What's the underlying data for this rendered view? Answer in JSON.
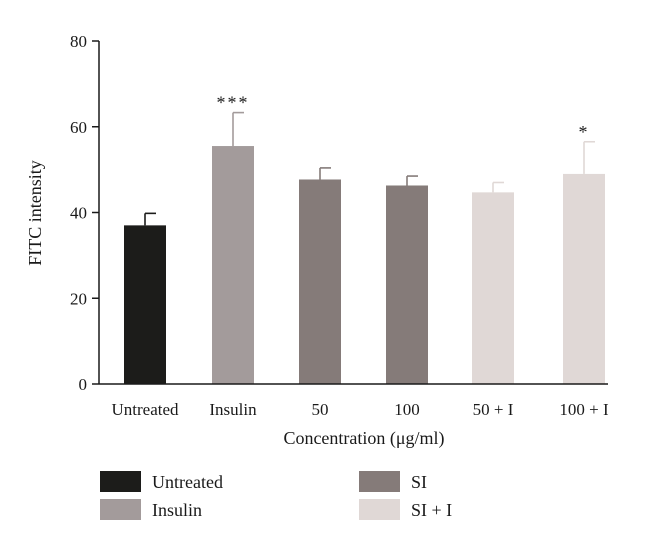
{
  "chart_data": {
    "type": "bar",
    "xlabel": "Concentration (μg/ml)",
    "ylabel": "FITC intensity",
    "ylim": [
      0,
      80
    ],
    "yticks": [
      "0",
      "20",
      "40",
      "60",
      "80"
    ],
    "categories": [
      "Untreated",
      "Insulin",
      "50",
      "100",
      "50 + I",
      "100 + I"
    ],
    "values": [
      37,
      55.5,
      47.7,
      46.3,
      44.7,
      49
    ],
    "errors": [
      2.8,
      7.8,
      2.7,
      2.2,
      2.3,
      7.5
    ],
    "significance": [
      "",
      "***",
      "",
      "",
      "",
      "*"
    ],
    "bar_groups": [
      "Untreated",
      "Insulin",
      "SI",
      "SI",
      "SI + I",
      "SI + I"
    ],
    "legend": [
      {
        "label": "Untreated",
        "color": "#1c1c1a"
      },
      {
        "label": "Insulin",
        "color": "#a39b9b"
      },
      {
        "label": "SI",
        "color": "#857b79"
      },
      {
        "label": "SI + I",
        "color": "#e0d8d6"
      }
    ],
    "legend_position": "bottom",
    "grid": false
  }
}
